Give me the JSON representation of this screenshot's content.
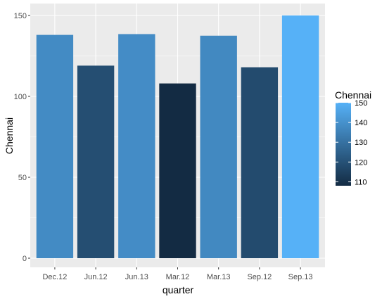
{
  "chart_data": {
    "type": "bar",
    "title": "",
    "xlabel": "quarter",
    "ylabel": "Chennai",
    "categories": [
      "Dec.12",
      "Jun.12",
      "Jun.13",
      "Mar.12",
      "Mar.13",
      "Sep.12",
      "Sep.13"
    ],
    "values": [
      138,
      119,
      138.5,
      108,
      137.5,
      118,
      150
    ],
    "ylim": [
      0,
      150
    ],
    "yticks": [
      0,
      50,
      100,
      150
    ],
    "ytick_labels": [
      "0",
      "50",
      "100",
      "150"
    ],
    "grid": true,
    "legend": {
      "title": "Chennai",
      "placement": "right",
      "type": "colorbar",
      "range": [
        108,
        150
      ],
      "ticks": [
        110,
        120,
        130,
        140,
        150
      ],
      "tick_labels": [
        "110",
        "120",
        "130",
        "140",
        "150"
      ]
    },
    "color_scale": {
      "low": "#132B43",
      "high": "#56B1F7"
    },
    "panel_background": "#EBEBEB",
    "grid_color": "#FFFFFF"
  }
}
